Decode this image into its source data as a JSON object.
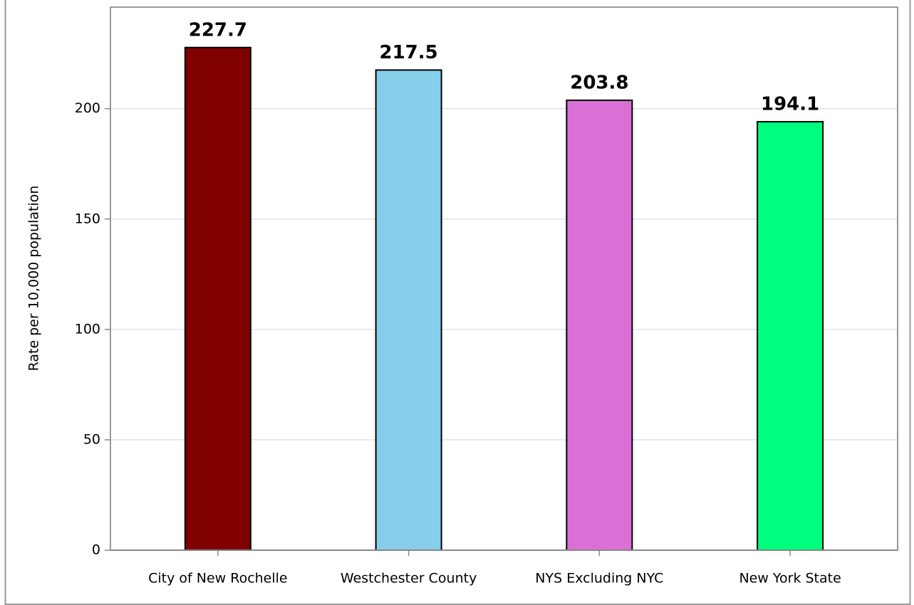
{
  "chart_data": {
    "type": "bar",
    "y_label": "Rate per 10,000 population",
    "categories": [
      "City of New Rochelle",
      "Westchester County",
      "NYS Excluding NYC",
      "New York State"
    ],
    "values": [
      227.7,
      217.5,
      203.8,
      194.1
    ],
    "colors": [
      "#800000",
      "#87ceeb",
      "#da70d6",
      "#00ff7f"
    ],
    "ylim": [
      0,
      246
    ],
    "yticks": [
      0,
      50,
      100,
      150,
      200
    ],
    "grid": true
  }
}
